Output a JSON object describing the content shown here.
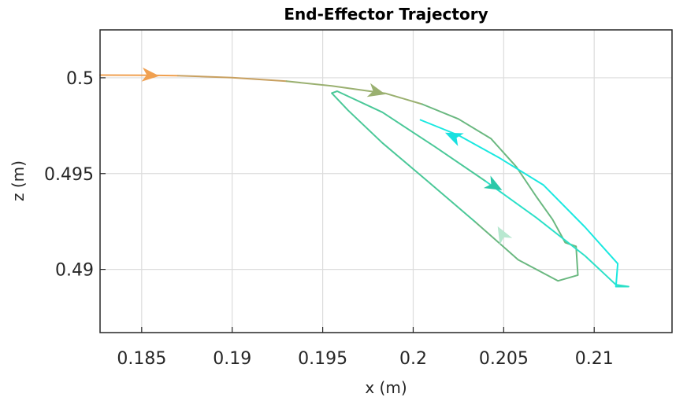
{
  "chart_data": {
    "type": "line",
    "title": "End-Effector Trajectory",
    "xlabel": "x (m)",
    "ylabel": "z (m)",
    "xlim": [
      0.1827,
      0.2143
    ],
    "ylim": [
      0.4867,
      0.5025
    ],
    "xticks": [
      0.185,
      0.19,
      0.195,
      0.2,
      0.205,
      0.21
    ],
    "xtick_labels": [
      "0.185",
      "0.19",
      "0.195",
      "0.2",
      "0.205",
      "0.21"
    ],
    "yticks": [
      0.49,
      0.495,
      0.5
    ],
    "ytick_labels": [
      "0.49",
      "0.495",
      "0.5"
    ],
    "grid": true,
    "series": [
      {
        "color": "#f0a050",
        "x": [
          0.1827,
          0.1855,
          0.187
        ],
        "y": [
          0.50014,
          0.50013,
          0.50011
        ]
      },
      {
        "color": "#c8a060",
        "x": [
          0.187,
          0.19,
          0.193
        ],
        "y": [
          0.50011,
          0.50001,
          0.49982
        ]
      },
      {
        "color": "#9ab070",
        "x": [
          0.193,
          0.1955,
          0.1985,
          0.2005
        ],
        "y": [
          0.49982,
          0.49958,
          0.49918,
          0.49862
        ]
      },
      {
        "color": "#6ab880",
        "x": [
          0.2005,
          0.2025,
          0.2043,
          0.2057,
          0.2068,
          0.2077,
          0.2084,
          0.209,
          0.2091,
          0.208,
          0.2058,
          0.2034
        ],
        "y": [
          0.49862,
          0.49785,
          0.49682,
          0.49535,
          0.4938,
          0.4926,
          0.4914,
          0.4912,
          0.4897,
          0.4894,
          0.4905,
          0.4925
        ]
      },
      {
        "color": "#4ac898",
        "x": [
          0.2034,
          0.2008,
          0.1983,
          0.1964,
          0.1955,
          0.1958,
          0.1983,
          0.2012,
          0.204
        ],
        "y": [
          0.4925,
          0.4946,
          0.4966,
          0.4983,
          0.4992,
          0.4993,
          0.4982,
          0.4964,
          0.4946
        ]
      },
      {
        "color": "#2ce0c8",
        "x": [
          0.204,
          0.2068,
          0.2095,
          0.2112,
          0.2119,
          0.2117,
          0.2112
        ],
        "y": [
          0.4946,
          0.4927,
          0.4907,
          0.4892,
          0.4891,
          0.4891,
          0.4891
        ]
      },
      {
        "color": "#1ae8e0",
        "x": [
          0.2112,
          0.2113,
          0.2095,
          0.2072,
          0.2048,
          0.2025,
          0.2004
        ],
        "y": [
          0.4891,
          0.4903,
          0.4922,
          0.4944,
          0.4958,
          0.497,
          0.4978
        ]
      }
    ],
    "arrows": [
      {
        "x": 0.1855,
        "y": 0.50013,
        "dx": 1,
        "dy": -0.08,
        "color": "#f0a050"
      },
      {
        "x": 0.198,
        "y": 0.49925,
        "dx": 1,
        "dy": -0.25,
        "color": "#9ab070"
      },
      {
        "x": 0.2045,
        "y": 0.49435,
        "dx": 1,
        "dy": -0.55,
        "color": "#2ac8a8"
      },
      {
        "x": 0.2049,
        "y": 0.49185,
        "dx": -0.55,
        "dy": 1,
        "color": "#b8e8d0"
      },
      {
        "x": 0.2022,
        "y": 0.49695,
        "dx": -1,
        "dy": 0.45,
        "color": "#18e0e0"
      }
    ]
  }
}
